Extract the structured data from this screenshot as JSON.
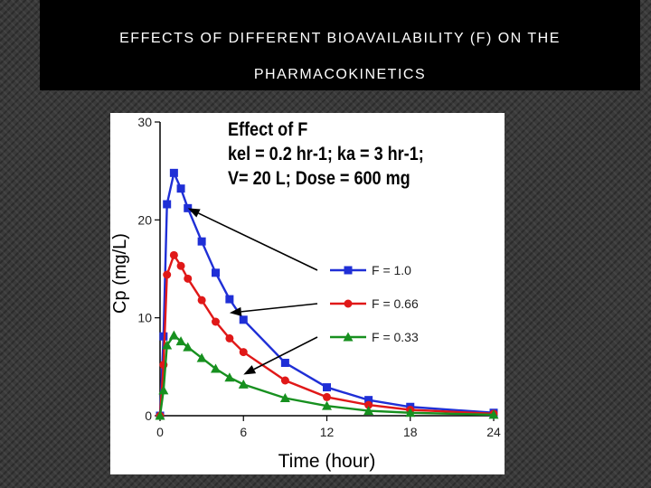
{
  "slide": {
    "title_line1": "EFFECTS OF DIFFERENT BIOAVAILABILITY (F) ON THE",
    "title_line2": "PHARMACOKINETICS"
  },
  "chart_data": {
    "type": "line",
    "title_lines": [
      "Effect of F",
      "kel = 0.2 hr-1; ka = 3 hr-1;",
      "V= 20 L; Dose = 600 mg"
    ],
    "xlabel": "Time (hour)",
    "ylabel": "Cp (mg/L)",
    "xlim": [
      0,
      24
    ],
    "ylim": [
      0,
      30
    ],
    "x_ticks": [
      0,
      6,
      12,
      18,
      24
    ],
    "x_tick_labels": [
      "0",
      "6",
      "12",
      "18",
      "24"
    ],
    "y_ticks": [
      0,
      10,
      20,
      30
    ],
    "y_tick_labels": [
      "0",
      "10",
      "20",
      "30"
    ],
    "grid": false,
    "legend_position": "center-right",
    "series": [
      {
        "name": "F = 1.0",
        "color": "#1f2fd6",
        "marker": "square",
        "x": [
          0,
          0.25,
          0.5,
          1,
          1.5,
          2,
          3,
          4,
          5,
          6,
          9,
          12,
          15,
          18,
          24
        ],
        "y": [
          0,
          8.1,
          21.6,
          24.8,
          23.2,
          21.2,
          17.8,
          14.6,
          11.9,
          9.8,
          5.4,
          2.9,
          1.6,
          0.9,
          0.3
        ]
      },
      {
        "name": "F = 0.66",
        "color": "#e01818",
        "marker": "circle",
        "x": [
          0,
          0.25,
          0.5,
          1,
          1.5,
          2,
          3,
          4,
          5,
          6,
          9,
          12,
          15,
          18,
          24
        ],
        "y": [
          0,
          5.2,
          14.4,
          16.4,
          15.3,
          14.0,
          11.8,
          9.6,
          7.9,
          6.5,
          3.6,
          1.9,
          1.1,
          0.6,
          0.2
        ]
      },
      {
        "name": "F = 0.33",
        "color": "#17901f",
        "marker": "triangle",
        "x": [
          0,
          0.25,
          0.5,
          1,
          1.5,
          2,
          3,
          4,
          5,
          6,
          9,
          12,
          15,
          18,
          24
        ],
        "y": [
          0,
          2.6,
          7.2,
          8.2,
          7.6,
          7.0,
          5.9,
          4.8,
          3.9,
          3.2,
          1.8,
          1.0,
          0.5,
          0.3,
          0.1
        ]
      }
    ],
    "annotation_arrows": [
      {
        "series": "F = 1.0",
        "to_point": [
          2,
          21.2
        ]
      },
      {
        "series": "F = 0.66",
        "to_point": [
          5,
          10.5
        ]
      },
      {
        "series": "F = 0.33",
        "to_point": [
          6,
          4.2
        ]
      }
    ]
  }
}
